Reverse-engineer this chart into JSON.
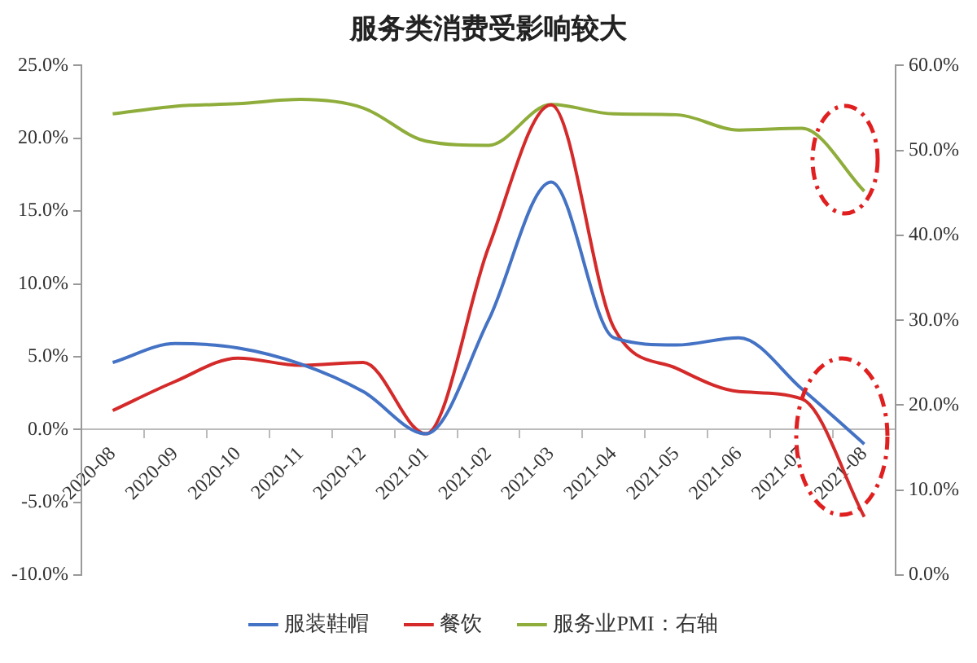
{
  "chart_data": {
    "type": "line",
    "title": "服务类消费受影响较大",
    "categories": [
      "2020-08",
      "2020-09",
      "2020-10",
      "2020-11",
      "2020-12",
      "2021-01",
      "2021-02",
      "2021-03",
      "2021-04",
      "2021-05",
      "2021-06",
      "2021-07",
      "2021-08"
    ],
    "series": [
      {
        "name": "服装鞋帽",
        "color": "#4472c4",
        "values": [
          4.6,
          5.9,
          5.6,
          4.5,
          2.6,
          -0.3,
          7.5,
          17.0,
          6.3,
          5.8,
          6.3,
          2.8,
          -1.0
        ]
      },
      {
        "name": "餐饮",
        "color": "#d42a2a",
        "values": [
          1.3,
          3.3,
          4.9,
          4.4,
          4.6,
          -0.3,
          12.5,
          22.3,
          7.0,
          4.2,
          2.6,
          2.1,
          -6.0
        ]
      },
      {
        "name": "服务业PMI：右轴",
        "color": "#8fad3b",
        "axis": "y2",
        "values": [
          54.3,
          55.2,
          55.5,
          56.0,
          55.0,
          51.1,
          50.6,
          55.4,
          54.3,
          54.2,
          52.4,
          52.6,
          45.2
        ]
      }
    ],
    "ylim": [
      -10,
      25
    ],
    "yticks": [
      {
        "value": -10,
        "label": "-10.0%"
      },
      {
        "value": -5,
        "label": "-5.0%"
      },
      {
        "value": 0,
        "label": "0.0%"
      },
      {
        "value": 5,
        "label": "5.0%"
      },
      {
        "value": 10,
        "label": "10.0%"
      },
      {
        "value": 15,
        "label": "15.0%"
      },
      {
        "value": 20,
        "label": "20.0%"
      },
      {
        "value": 25,
        "label": "25.0%"
      }
    ],
    "y2lim": [
      0,
      60
    ],
    "y2ticks": [
      {
        "value": 0,
        "label": "0.0%"
      },
      {
        "value": 10,
        "label": "10.0%"
      },
      {
        "value": 20,
        "label": "20.0%"
      },
      {
        "value": 30,
        "label": "30.0%"
      },
      {
        "value": 40,
        "label": "40.0%"
      },
      {
        "value": 50,
        "label": "50.0%"
      },
      {
        "value": 60,
        "label": "60.0%"
      }
    ],
    "grid": false,
    "legend": "bottom",
    "marker": "none",
    "line_style": "solid"
  }
}
